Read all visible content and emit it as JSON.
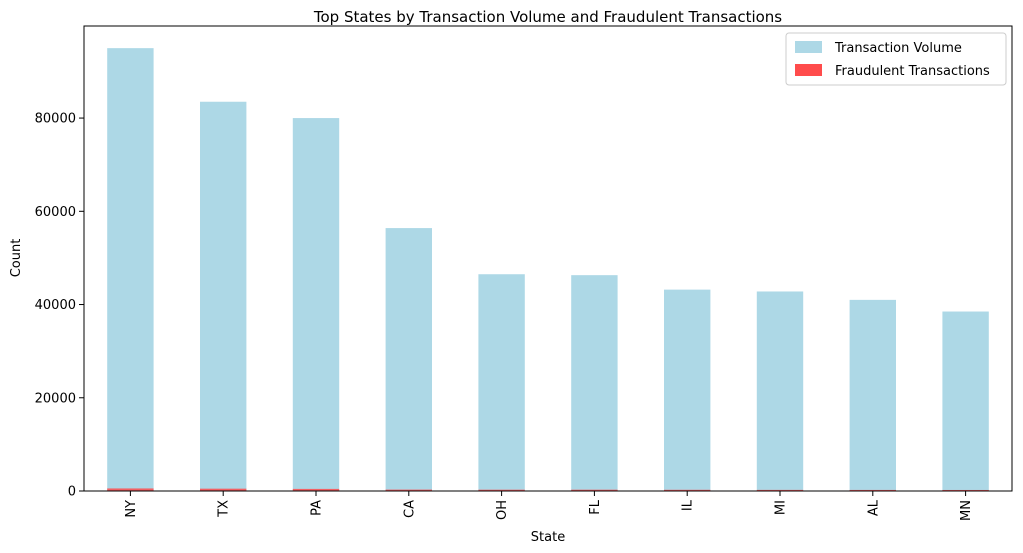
{
  "chart_data": {
    "type": "bar",
    "title": "Top States by Transaction Volume and Fraudulent Transactions",
    "xlabel": "State",
    "ylabel": "Count",
    "categories": [
      "NY",
      "TX",
      "PA",
      "CA",
      "OH",
      "FL",
      "IL",
      "MI",
      "AL",
      "MN"
    ],
    "series": [
      {
        "name": "Transaction Volume",
        "color": "#add8e6",
        "values": [
          95000,
          83500,
          80000,
          56400,
          46500,
          46300,
          43200,
          42800,
          41000,
          38500
        ]
      },
      {
        "name": "Fraudulent Transactions",
        "color": "#ff4c4c",
        "values": [
          550,
          500,
          450,
          300,
          280,
          280,
          260,
          240,
          230,
          220
        ]
      }
    ],
    "ylim": [
      0,
      99750
    ],
    "yticks": [
      0,
      20000,
      40000,
      60000,
      80000
    ],
    "ytick_labels": [
      "0",
      "20000",
      "40000",
      "60000",
      "80000"
    ],
    "legend_position": "top-right",
    "grid": false
  }
}
